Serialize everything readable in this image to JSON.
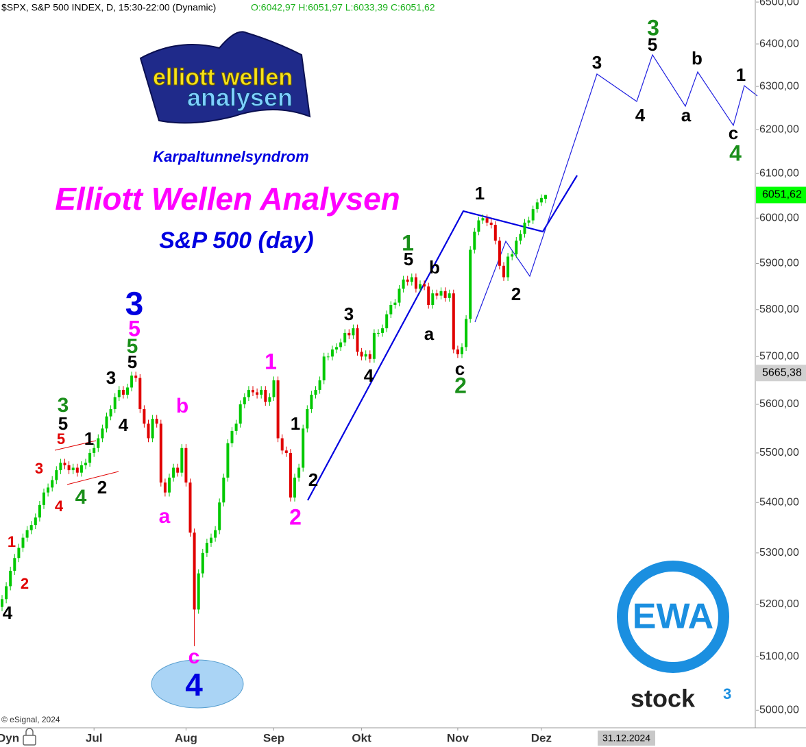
{
  "chart_data": {
    "type": "candlestick",
    "header": {
      "symbol": "$SPX, S&P 500 INDEX, D, 15:30-22:00 (Dynamic)",
      "ohlc": "O:6042,97 H:6051,97 L:6033,39 C:6051,62"
    },
    "subtitle_top": "Karpaltunnelsyndrom",
    "title": "Elliott Wellen Analysen",
    "subtitle": "S&P 500 (day)",
    "logo_text": [
      "elliott wellen",
      "analysen"
    ],
    "brand_logo": "EWA",
    "brand_name": "stock",
    "brand_mark": "3",
    "copyright": "© eSignal, 2024",
    "mode_label": "Dyn",
    "date_box": "31.12.2024",
    "up_color": "#00c800",
    "down_color": "#e00000",
    "log_scale": true,
    "ylim": [
      4970,
      6505
    ],
    "yticks": [
      {
        "value": 5000,
        "label": "5000,00"
      },
      {
        "value": 5100,
        "label": "5100,00"
      },
      {
        "value": 5200,
        "label": "5200,00"
      },
      {
        "value": 5300,
        "label": "5300,00"
      },
      {
        "value": 5400,
        "label": "5400,00"
      },
      {
        "value": 5500,
        "label": "5500,00"
      },
      {
        "value": 5600,
        "label": "5600,00"
      },
      {
        "value": 5700,
        "label": "5700,00"
      },
      {
        "value": 5800,
        "label": "5800,00"
      },
      {
        "value": 5900,
        "label": "5900,00"
      },
      {
        "value": 6000,
        "label": "6000,00"
      },
      {
        "value": 6100,
        "label": "6100,00"
      },
      {
        "value": 6200,
        "label": "6200,00"
      },
      {
        "value": 6300,
        "label": "6300,00"
      },
      {
        "value": 6400,
        "label": "6400,00"
      },
      {
        "value": 6500,
        "label": "6500,00"
      }
    ],
    "xticks": [
      {
        "value": 22,
        "label": "Jul"
      },
      {
        "value": 44,
        "label": "Aug"
      },
      {
        "value": 65,
        "label": "Sep"
      },
      {
        "value": 86,
        "label": "Okt"
      },
      {
        "value": 109,
        "label": "Nov"
      },
      {
        "value": 129,
        "label": "Dez"
      }
    ],
    "last_price": {
      "value": 6051.62,
      "label": "6051,62",
      "color": "#00ff00"
    },
    "marker_price": {
      "value": 5665.38,
      "label": "5665,38",
      "color": "#d0d0d0"
    },
    "open": [
      5195,
      5210,
      5235,
      5265,
      5290,
      5310,
      5330,
      5345,
      5355,
      5370,
      5395,
      5420,
      5430,
      5445,
      5465,
      5480,
      5475,
      5465,
      5470,
      5460,
      5475,
      5480,
      5500,
      5510,
      5530,
      5550,
      5575,
      5590,
      5615,
      5630,
      5620,
      5635,
      5660,
      5655,
      5590,
      5560,
      5530,
      5570,
      5560,
      5440,
      5420,
      5450,
      5470,
      5460,
      5510,
      5440,
      5340,
      5190,
      5260,
      5300,
      5320,
      5330,
      5345,
      5400,
      5450,
      5520,
      5545,
      5560,
      5600,
      5615,
      5630,
      5625,
      5620,
      5630,
      5605,
      5615,
      5650,
      5530,
      5505,
      5500,
      5410,
      5450,
      5470,
      5550,
      5590,
      5620,
      5630,
      5650,
      5700,
      5700,
      5715,
      5720,
      5730,
      5750,
      5745,
      5760,
      5710,
      5700,
      5705,
      5695,
      5750,
      5750,
      5760,
      5790,
      5810,
      5815,
      5845,
      5865,
      5860,
      5870,
      5845,
      5855,
      5850,
      5810,
      5835,
      5830,
      5840,
      5825,
      5835,
      5715,
      5705,
      5720,
      5780,
      5930,
      5970,
      5995,
      6000,
      5990,
      5985,
      5950,
      5895,
      5870,
      5915,
      5920,
      5950,
      5965,
      5990,
      5995,
      6020,
      6035,
      6042.97
    ],
    "high": [
      5218,
      5243,
      5273,
      5298,
      5318,
      5338,
      5353,
      5363,
      5378,
      5403,
      5428,
      5438,
      5453,
      5473,
      5488,
      5488,
      5483,
      5478,
      5478,
      5483,
      5488,
      5508,
      5518,
      5538,
      5558,
      5583,
      5598,
      5623,
      5638,
      5638,
      5643,
      5668,
      5668,
      5663,
      5598,
      5568,
      5578,
      5578,
      5568,
      5448,
      5458,
      5478,
      5478,
      5518,
      5518,
      5448,
      5348,
      5268,
      5308,
      5328,
      5338,
      5353,
      5408,
      5458,
      5528,
      5553,
      5568,
      5608,
      5623,
      5638,
      5638,
      5633,
      5638,
      5638,
      5623,
      5658,
      5658,
      5538,
      5513,
      5508,
      5458,
      5478,
      5558,
      5598,
      5628,
      5638,
      5658,
      5708,
      5708,
      5723,
      5728,
      5738,
      5758,
      5758,
      5768,
      5768,
      5718,
      5713,
      5713,
      5758,
      5758,
      5768,
      5798,
      5818,
      5823,
      5853,
      5873,
      5873,
      5878,
      5878,
      5863,
      5863,
      5858,
      5843,
      5843,
      5848,
      5848,
      5843,
      5843,
      5723,
      5728,
      5788,
      5938,
      5978,
      6003,
      6008,
      6008,
      5998,
      5993,
      5958,
      5903,
      5923,
      5928,
      5958,
      5973,
      5998,
      6003,
      6028,
      6043,
      6053,
      6051.97
    ],
    "low": [
      5187,
      5202,
      5227,
      5257,
      5282,
      5302,
      5322,
      5337,
      5347,
      5362,
      5387,
      5412,
      5422,
      5437,
      5457,
      5467,
      5457,
      5457,
      5452,
      5452,
      5467,
      5472,
      5492,
      5502,
      5522,
      5542,
      5567,
      5582,
      5607,
      5612,
      5612,
      5627,
      5647,
      5582,
      5552,
      5522,
      5522,
      5552,
      5432,
      5412,
      5412,
      5442,
      5452,
      5452,
      5432,
      5332,
      5120,
      5182,
      5252,
      5292,
      5312,
      5322,
      5337,
      5392,
      5442,
      5512,
      5537,
      5552,
      5592,
      5607,
      5617,
      5612,
      5612,
      5597,
      5597,
      5607,
      5522,
      5497,
      5492,
      5402,
      5402,
      5442,
      5462,
      5542,
      5582,
      5612,
      5622,
      5642,
      5692,
      5692,
      5707,
      5712,
      5722,
      5737,
      5737,
      5702,
      5692,
      5692,
      5687,
      5687,
      5742,
      5742,
      5752,
      5782,
      5802,
      5807,
      5837,
      5852,
      5852,
      5837,
      5837,
      5842,
      5802,
      5802,
      5822,
      5822,
      5817,
      5817,
      5707,
      5697,
      5697,
      5712,
      5772,
      5922,
      5962,
      5987,
      5982,
      5977,
      5942,
      5887,
      5862,
      5862,
      5907,
      5912,
      5942,
      5957,
      5982,
      5987,
      6012,
      6027,
      6033.39
    ],
    "close": [
      5210,
      5235,
      5265,
      5290,
      5310,
      5330,
      5345,
      5355,
      5370,
      5395,
      5420,
      5430,
      5445,
      5465,
      5480,
      5475,
      5465,
      5470,
      5460,
      5475,
      5480,
      5500,
      5510,
      5530,
      5550,
      5575,
      5590,
      5615,
      5630,
      5620,
      5635,
      5660,
      5655,
      5590,
      5560,
      5530,
      5570,
      5560,
      5440,
      5420,
      5450,
      5470,
      5460,
      5510,
      5440,
      5340,
      5190,
      5260,
      5300,
      5320,
      5330,
      5345,
      5400,
      5450,
      5520,
      5545,
      5560,
      5600,
      5615,
      5630,
      5625,
      5620,
      5630,
      5605,
      5615,
      5650,
      5530,
      5505,
      5500,
      5410,
      5450,
      5470,
      5550,
      5590,
      5620,
      5630,
      5650,
      5700,
      5700,
      5715,
      5720,
      5730,
      5750,
      5745,
      5760,
      5710,
      5700,
      5705,
      5695,
      5750,
      5750,
      5760,
      5790,
      5810,
      5815,
      5845,
      5865,
      5860,
      5870,
      5845,
      5855,
      5850,
      5810,
      5835,
      5830,
      5840,
      5825,
      5835,
      5715,
      5705,
      5720,
      5780,
      5930,
      5970,
      5995,
      6000,
      5990,
      5985,
      5950,
      5895,
      5870,
      5915,
      5920,
      5950,
      5965,
      5990,
      5995,
      6020,
      6035,
      6045,
      6051.62
    ],
    "wave_labels": [
      {
        "text": "4",
        "color": "#000000"
      },
      {
        "text": "2",
        "color": "#e00000"
      },
      {
        "text": "1",
        "color": "#e00000"
      },
      {
        "text": "4",
        "color": "#e00000"
      },
      {
        "text": "3",
        "color": "#e00000"
      },
      {
        "text": "5",
        "color": "#e00000"
      },
      {
        "text": "3",
        "color": "#1a8f1a"
      },
      {
        "text": "5",
        "color": "#000000"
      },
      {
        "text": "4",
        "color": "#1a8f1a"
      },
      {
        "text": "1",
        "color": "#000000"
      },
      {
        "text": "2",
        "color": "#000000"
      },
      {
        "text": "3",
        "color": "#000000"
      },
      {
        "text": "4",
        "color": "#000000"
      },
      {
        "text": "5",
        "color": "#000000"
      },
      {
        "text": "5",
        "color": "#1a8f1a"
      },
      {
        "text": "5",
        "color": "#ff00ff"
      },
      {
        "text": "3",
        "color": "#0000e0"
      },
      {
        "text": "b",
        "color": "#ff00ff"
      },
      {
        "text": "a",
        "color": "#ff00ff"
      },
      {
        "text": "c",
        "color": "#ff00ff"
      },
      {
        "text": "4",
        "color": "#0000e0"
      },
      {
        "text": "1",
        "color": "#ff00ff"
      },
      {
        "text": "2",
        "color": "#ff00ff"
      },
      {
        "text": "1",
        "color": "#000000"
      },
      {
        "text": "2",
        "color": "#000000"
      },
      {
        "text": "3",
        "color": "#000000"
      },
      {
        "text": "4",
        "color": "#000000"
      },
      {
        "text": "5",
        "color": "#000000"
      },
      {
        "text": "1",
        "color": "#1a8f1a"
      },
      {
        "text": "b",
        "color": "#000000"
      },
      {
        "text": "a",
        "color": "#000000"
      },
      {
        "text": "c",
        "color": "#000000"
      },
      {
        "text": "2",
        "color": "#1a8f1a"
      },
      {
        "text": "1",
        "color": "#000000"
      },
      {
        "text": "2",
        "color": "#000000"
      },
      {
        "text": "3",
        "color": "#000000"
      },
      {
        "text": "4",
        "color": "#000000"
      },
      {
        "text": "5",
        "color": "#000000"
      },
      {
        "text": "3",
        "color": "#1a8f1a"
      },
      {
        "text": "b",
        "color": "#000000"
      },
      {
        "text": "a",
        "color": "#000000"
      },
      {
        "text": "1",
        "color": "#000000"
      },
      {
        "text": "c",
        "color": "#000000"
      },
      {
        "text": "4",
        "color": "#1a8f1a"
      }
    ]
  }
}
